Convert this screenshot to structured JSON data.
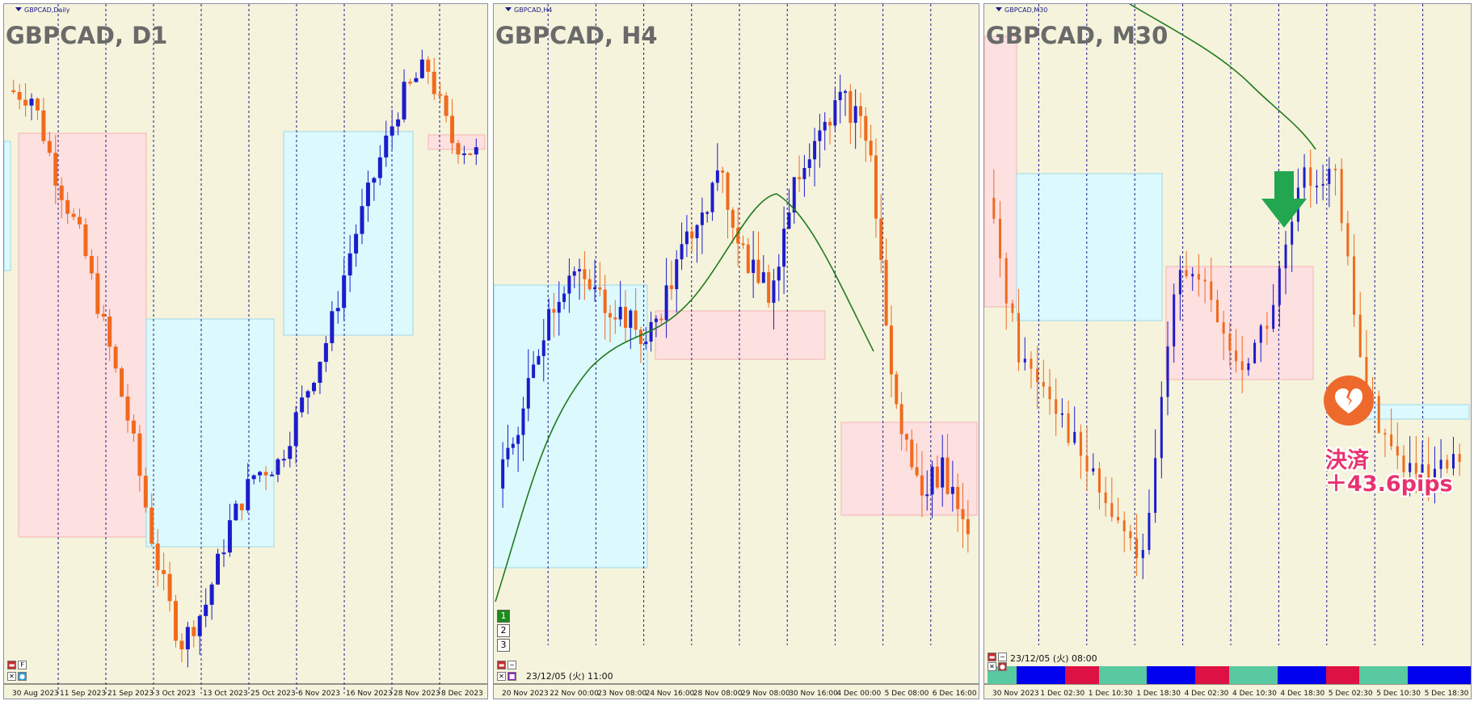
{
  "colors": {
    "bg": "#f5f3dc",
    "bull": "#1c1ccc",
    "bear": "#f06a1e",
    "zone_blue": "#dcf9fd",
    "zone_pink": "#fde0e0",
    "ma": "#1f7a1f",
    "grid": "#1a1a8a",
    "annotation": "#e8336f",
    "arrow": "#22a650"
  },
  "panels": [
    {
      "id": "d1",
      "small_label": "GBPCAD,Daily",
      "title": "GBPCAD, D1",
      "x_ticks": [
        "30 Aug 2023",
        "11 Sep 2023",
        "21 Sep 2023",
        "3 Oct 2023",
        "13 Oct 2023",
        "25 Oct 2023",
        "6 Nov 2023",
        "16 Nov 2023",
        "28 Nov 2023",
        "8 Dec 2023"
      ],
      "timestamp": ""
    },
    {
      "id": "h4",
      "small_label": "GBPCAD,H4",
      "title": "GBPCAD, H4",
      "x_ticks": [
        "20 Nov 2023",
        "22 Nov 00:00",
        "23 Nov 08:00",
        "24 Nov 16:00",
        "28 Nov 08:00",
        "29 Nov 08:00",
        "30 Nov 16:00",
        "4 Dec 00:00",
        "5 Dec 08:00",
        "6 Dec 16:00"
      ],
      "timestamp": "23/12/05 (火) 11:00",
      "buttons": [
        "1",
        "2",
        "3"
      ]
    },
    {
      "id": "m30",
      "small_label": "GBPCAD,M30",
      "title": "GBPCAD, M30",
      "x_ticks": [
        "30 Nov 2023",
        "1 Dec 02:30",
        "1 Dec 10:30",
        "1 Dec 18:30",
        "4 Dec 02:30",
        "4 Dec 10:30",
        "4 Dec 18:30",
        "5 Dec 02:30",
        "5 Dec 10:30",
        "5 Dec 18:30"
      ],
      "timestamp": "23/12/05 (火) 08:00"
    }
  ],
  "annotation": {
    "line1": "決済",
    "line2": "＋43.6pips",
    "arrow_icon": "down-arrow-icon",
    "result_icon": "broken-heart-icon"
  },
  "chart_data": [
    {
      "type": "candlestick",
      "title": "GBPCAD, D1",
      "x": [
        "30 Aug 2023",
        "11 Sep 2023",
        "21 Sep 2023",
        "3 Oct 2023",
        "13 Oct 2023",
        "25 Oct 2023",
        "6 Nov 2023",
        "16 Nov 2023",
        "28 Nov 2023",
        "8 Dec 2023"
      ],
      "trend_path": [
        0.94,
        0.93,
        0.8,
        0.7,
        0.55,
        0.4,
        0.2,
        0.06,
        0.12,
        0.25,
        0.33,
        0.35,
        0.45,
        0.55,
        0.7,
        0.82,
        0.93,
        0.98,
        0.86,
        0.84
      ],
      "zones": [
        {
          "color": "pink",
          "from": 0.07,
          "to": 0.29
        },
        {
          "color": "blue",
          "from": 0.29,
          "to": 0.57
        },
        {
          "color": "blue",
          "from": 0.57,
          "to": 0.85
        },
        {
          "color": "pink",
          "from": 0.85,
          "to": 1.0
        }
      ]
    },
    {
      "type": "candlestick",
      "title": "GBPCAD, H4",
      "x": [
        "20 Nov 2023",
        "22 Nov 00:00",
        "23 Nov 08:00",
        "24 Nov 16:00",
        "28 Nov 08:00",
        "29 Nov 08:00",
        "30 Nov 16:00",
        "4 Dec 00:00",
        "5 Dec 08:00",
        "6 Dec 16:00"
      ],
      "trend_path": [
        0.25,
        0.38,
        0.55,
        0.62,
        0.58,
        0.55,
        0.5,
        0.6,
        0.72,
        0.78,
        0.65,
        0.58,
        0.78,
        0.88,
        0.92,
        0.85,
        0.4,
        0.25,
        0.28,
        0.18
      ],
      "moving_average": true
    },
    {
      "type": "candlestick",
      "title": "GBPCAD, M30",
      "x": [
        "30 Nov 2023",
        "1 Dec 02:30",
        "1 Dec 10:30",
        "1 Dec 18:30",
        "4 Dec 02:30",
        "4 Dec 10:30",
        "4 Dec 18:30",
        "5 Dec 02:30",
        "5 Dec 10:30",
        "5 Dec 18:30"
      ],
      "trend_path": [
        0.75,
        0.48,
        0.42,
        0.3,
        0.2,
        0.12,
        0.65,
        0.58,
        0.45,
        0.55,
        0.78,
        0.8,
        0.42,
        0.3,
        0.26,
        0.3
      ],
      "moving_average": true,
      "result": "決済 ＋43.6pips"
    }
  ]
}
